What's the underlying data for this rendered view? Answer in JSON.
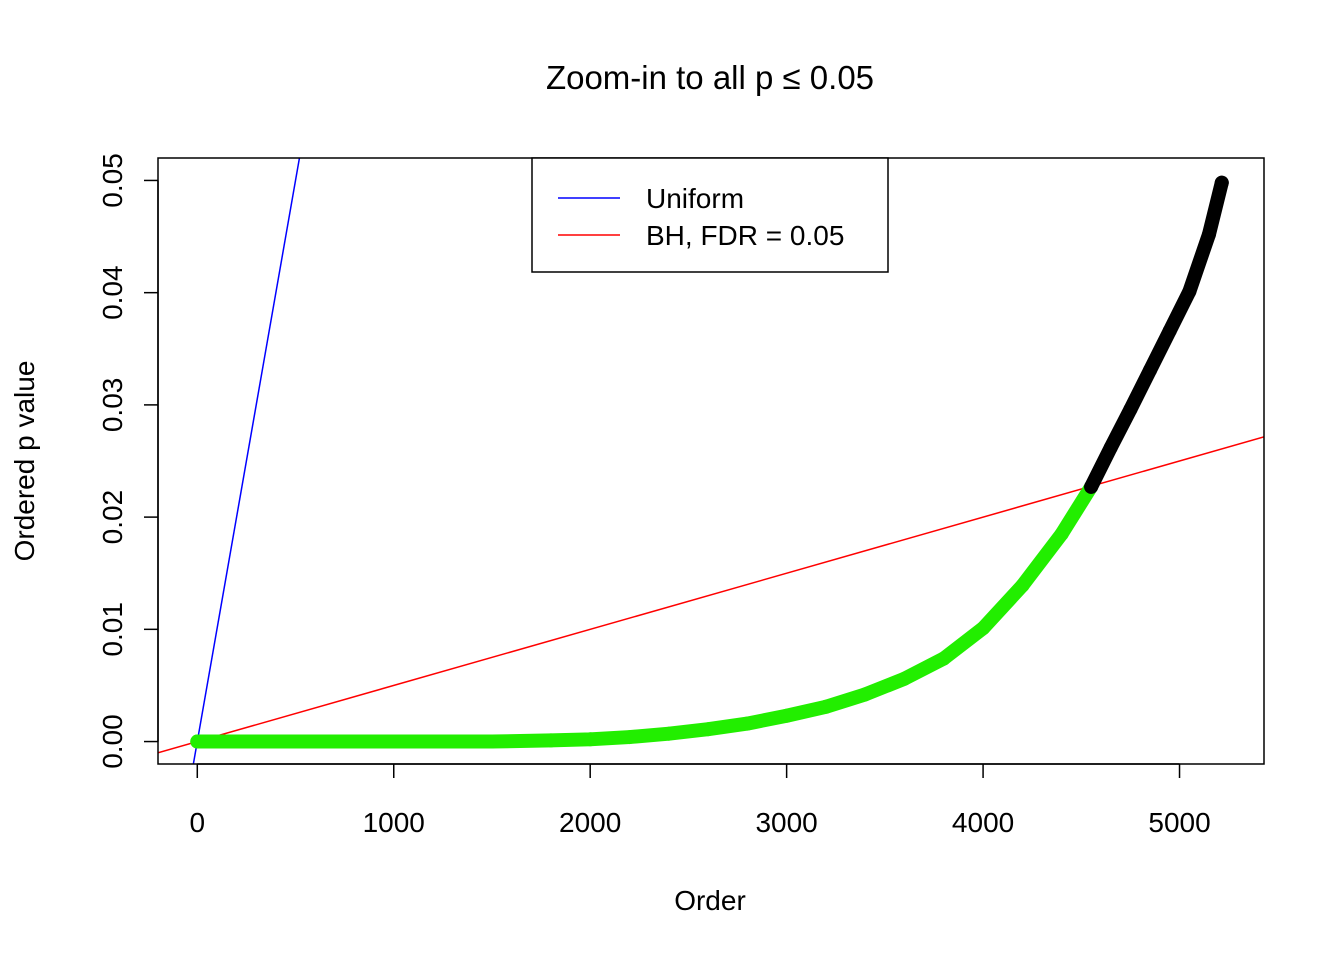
{
  "chart_data": {
    "type": "scatter",
    "title": "Zoom-in to all p ≤ 0.05",
    "xlabel": "Order",
    "ylabel": "Ordered p value",
    "xlim": [
      -200,
      5430
    ],
    "ylim": [
      -0.002,
      0.052
    ],
    "x_ticks": [
      0,
      1000,
      2000,
      3000,
      4000,
      5000
    ],
    "x_tick_labels": [
      "0",
      "1000",
      "2000",
      "3000",
      "4000",
      "5000"
    ],
    "y_ticks": [
      0.0,
      0.01,
      0.02,
      0.03,
      0.04,
      0.05
    ],
    "y_tick_labels": [
      "0.00",
      "0.01",
      "0.02",
      "0.03",
      "0.04",
      "0.05"
    ],
    "grid": false,
    "legend_position": "top-center",
    "lines": [
      {
        "name": "Uniform",
        "color": "#0000ff",
        "intercept": 0,
        "slope": 0.0001
      },
      {
        "name": "BH, FDR = 0.05",
        "color": "#ff0000",
        "intercept": 0,
        "slope": 5e-06
      }
    ],
    "series": [
      {
        "color": "#22ee00",
        "x": [
          0,
          500,
          1000,
          1500,
          1800,
          2000,
          2200,
          2400,
          2600,
          2800,
          3000,
          3200,
          3400,
          3600,
          3800,
          4000,
          4200,
          4400,
          4550
        ],
        "y": [
          0.0,
          0.0,
          0.0,
          0.0,
          0.0001,
          0.0002,
          0.0004,
          0.0007,
          0.0011,
          0.0016,
          0.0023,
          0.0031,
          0.0042,
          0.0056,
          0.0074,
          0.0101,
          0.0139,
          0.0185,
          0.0227
        ]
      },
      {
        "color": "#000000",
        "x": [
          4550,
          4650,
          4750,
          4850,
          4950,
          5050,
          5150,
          5215
        ],
        "y": [
          0.0227,
          0.0262,
          0.0296,
          0.0331,
          0.0366,
          0.0401,
          0.0452,
          0.0498
        ]
      }
    ]
  }
}
